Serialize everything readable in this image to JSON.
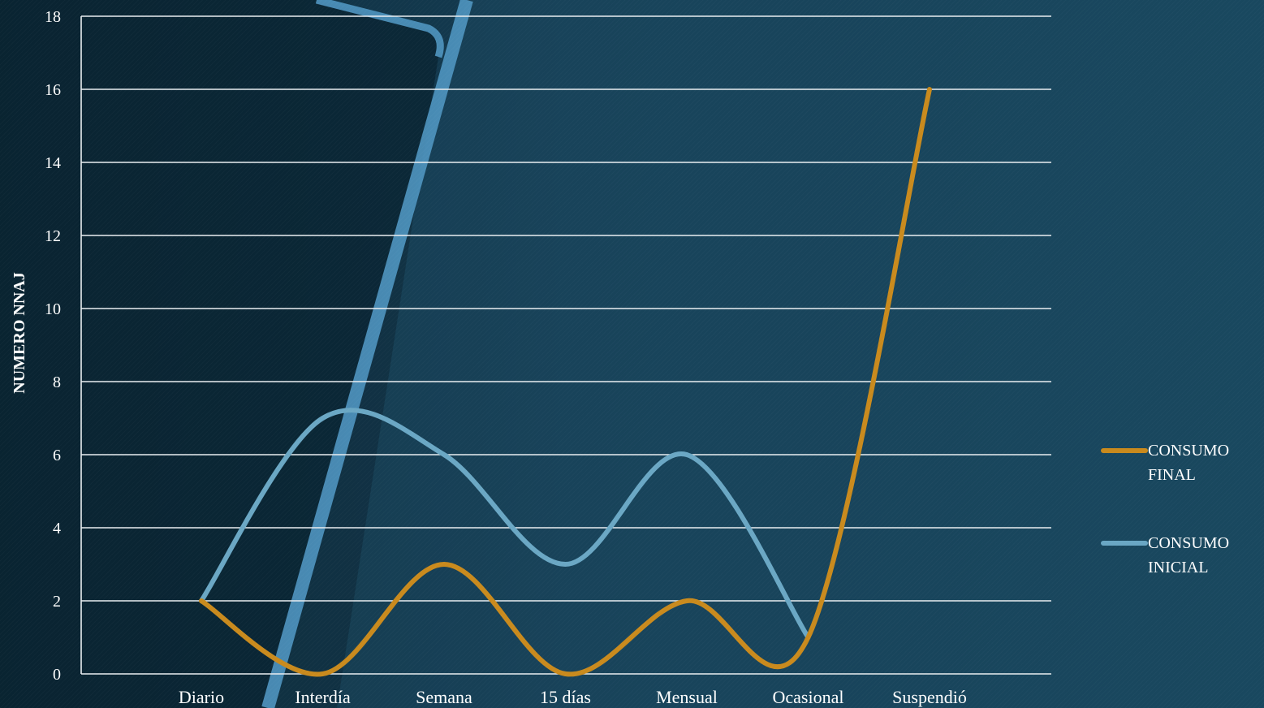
{
  "chart_data": {
    "type": "line",
    "ylabel": "NUMERO NNAJ",
    "xlabel": "",
    "ylim": [
      0,
      18
    ],
    "yticks": [
      0,
      2,
      4,
      6,
      8,
      10,
      12,
      14,
      16,
      18
    ],
    "categories": [
      "Diario",
      "Interdía",
      "Semana",
      "15 días",
      "Mensual",
      "Ocasional",
      "Suspendió"
    ],
    "series": [
      {
        "name": "CONSUMO FINAL",
        "values": [
          2,
          0,
          3,
          0,
          2,
          1,
          16
        ],
        "color": "#c98a1d"
      },
      {
        "name": "CONSUMO INICIAL",
        "values": [
          2,
          7,
          6,
          3,
          6,
          1,
          null
        ],
        "color": "#6aa7c4"
      }
    ],
    "grid": true,
    "legend_position": "right"
  },
  "legend": {
    "items": [
      {
        "line1": "CONSUMO",
        "line2": "FINAL",
        "color": "#c98a1d"
      },
      {
        "line1": "CONSUMO",
        "line2": "INICIAL",
        "color": "#6aa7c4"
      }
    ]
  }
}
